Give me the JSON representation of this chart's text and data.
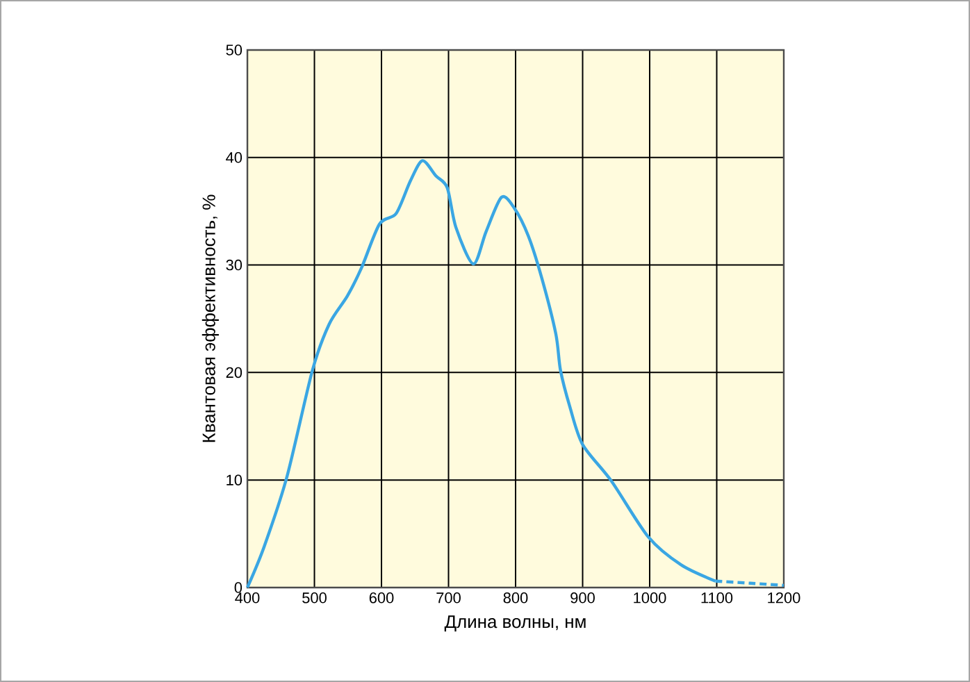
{
  "chart_data": {
    "type": "line",
    "xlabel": "Длина волны, нм",
    "ylabel": "Квантовая эффективность, %",
    "xlim": [
      400,
      1200
    ],
    "ylim": [
      0,
      50
    ],
    "xticks": [
      400,
      500,
      600,
      700,
      800,
      900,
      1000,
      1100,
      1200
    ],
    "yticks": [
      0,
      10,
      20,
      30,
      40,
      50
    ],
    "grid": true,
    "marker": "none",
    "series": [
      {
        "color": "#3aa6e3",
        "line_style": "solid",
        "x": [
          400,
          425,
          459,
          497,
          522,
          549,
          570,
          597,
          622,
          643,
          661,
          681,
          698,
          711,
          737,
          756,
          779,
          798,
          819,
          839,
          860,
          867,
          881,
          900,
          943,
          998,
          1047,
          1098
        ],
        "values": [
          0,
          3.8,
          10.3,
          20.2,
          24.5,
          27.1,
          29.7,
          33.8,
          34.8,
          37.8,
          39.7,
          38.3,
          37.2,
          33.5,
          30.1,
          33.1,
          36.3,
          35.3,
          32.7,
          28.8,
          23.6,
          20.2,
          16.8,
          13.3,
          9.9,
          4.7,
          2.1,
          0.6
        ]
      },
      {
        "color": "#3aa6e3",
        "line_style": "dashed",
        "x": [
          1098,
          1150,
          1200
        ],
        "values": [
          0.6,
          0.4,
          0.2
        ]
      }
    ]
  }
}
